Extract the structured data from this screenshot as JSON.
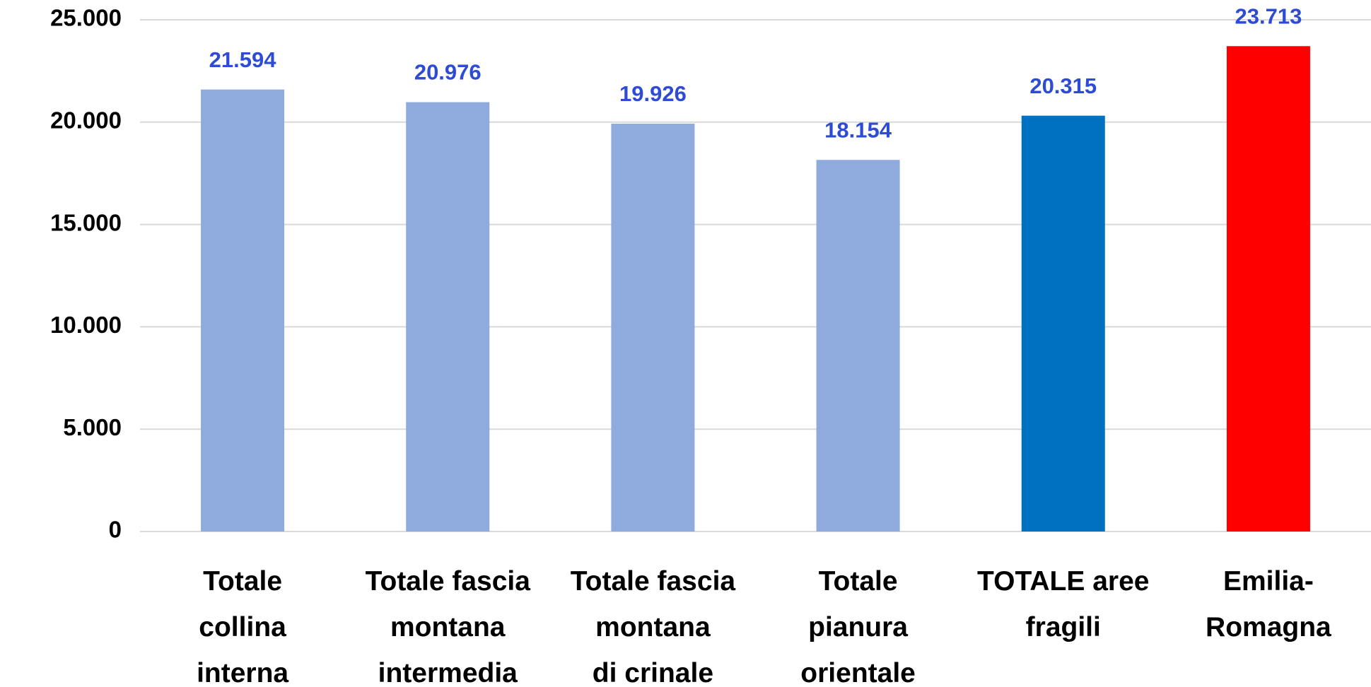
{
  "chart_data": {
    "type": "bar",
    "categories": [
      "Totale\ncollina\ninterna",
      "Totale fascia\nmontana\nintermedia",
      "Totale fascia\nmontana\ndi crinale",
      "Totale\npianura\norientale",
      "TOTALE aree\nfragili",
      "Emilia-\nRomagna"
    ],
    "values": [
      21594,
      20976,
      19926,
      18154,
      20315,
      23713
    ],
    "value_labels": [
      "21.594",
      "20.976",
      "19.926",
      "18.154",
      "20.315",
      "23.713"
    ],
    "colors": [
      "#8faadc",
      "#8faadc",
      "#8faadc",
      "#8faadc",
      "#0070c0",
      "#ff0000"
    ],
    "ylim": [
      0,
      25000
    ],
    "yticks": [
      0,
      {
        "value": 5000,
        "label": "5.000"
      },
      {
        "value": 10000,
        "label": "10.000"
      },
      {
        "value": 15000,
        "label": "15.000"
      },
      {
        "value": 20000,
        "label": "20.000"
      },
      {
        "value": 25000,
        "label": "25.000"
      }
    ],
    "grid": true
  }
}
